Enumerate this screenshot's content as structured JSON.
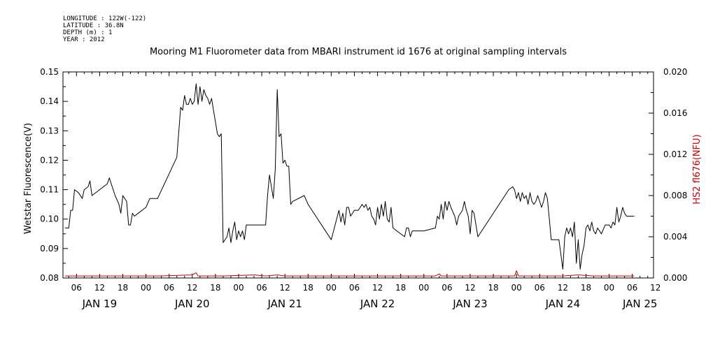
{
  "meta": {
    "longitude": "LONGITUDE : 122W(-122)",
    "latitude": "LATITUDE : 36.8N",
    "depth": "DEPTH (m) : 1",
    "year": "YEAR : 2012"
  },
  "chart_data": {
    "type": "line",
    "title": "Mooring M1 Fluorometer data from MBARI instrument id 1676 at original sampling intervals",
    "ylabel_left": "Wetstar Fluorescence(V)",
    "ylabel_right": "HS2 fl676(NFU)",
    "ylim_left": [
      0.08,
      0.15
    ],
    "ylim_right": [
      0.0,
      0.02
    ],
    "yticks_left": [
      "0.08",
      "0.09",
      "0.10",
      "0.11",
      "0.12",
      "0.13",
      "0.14",
      "0.15"
    ],
    "yticks_right": [
      "0.000",
      "0.004",
      "0.008",
      "0.012",
      "0.016",
      "0.020"
    ],
    "xlim_hours": [
      2.5,
      155.5
    ],
    "x_hour_labels": [
      {
        "h": 6,
        "label": "06"
      },
      {
        "h": 12,
        "label": "12"
      },
      {
        "h": 18,
        "label": "18"
      },
      {
        "h": 24,
        "label": "00"
      },
      {
        "h": 30,
        "label": "06"
      },
      {
        "h": 36,
        "label": "12"
      },
      {
        "h": 42,
        "label": "18"
      },
      {
        "h": 48,
        "label": "00"
      },
      {
        "h": 54,
        "label": "06"
      },
      {
        "h": 60,
        "label": "12"
      },
      {
        "h": 66,
        "label": "18"
      },
      {
        "h": 72,
        "label": "00"
      },
      {
        "h": 78,
        "label": "06"
      },
      {
        "h": 84,
        "label": "12"
      },
      {
        "h": 90,
        "label": "18"
      },
      {
        "h": 96,
        "label": "00"
      },
      {
        "h": 102,
        "label": "06"
      },
      {
        "h": 108,
        "label": "12"
      },
      {
        "h": 114,
        "label": "18"
      },
      {
        "h": 120,
        "label": "00"
      },
      {
        "h": 126,
        "label": "06"
      },
      {
        "h": 132,
        "label": "12"
      },
      {
        "h": 138,
        "label": "18"
      },
      {
        "h": 144,
        "label": "00"
      },
      {
        "h": 150,
        "label": "06"
      },
      {
        "h": 156,
        "label": "12"
      }
    ],
    "x_day_labels": [
      {
        "h": 12,
        "label": "JAN 19"
      },
      {
        "h": 36,
        "label": "JAN 20"
      },
      {
        "h": 60,
        "label": "JAN 21"
      },
      {
        "h": 84,
        "label": "JAN 22"
      },
      {
        "h": 108,
        "label": "JAN 23"
      },
      {
        "h": 132,
        "label": "JAN 24"
      },
      {
        "h": 152,
        "label": "JAN 25"
      }
    ],
    "series": [
      {
        "color": "#000000",
        "axis": "left",
        "points": [
          [
            3,
            0.097
          ],
          [
            4,
            0.097
          ],
          [
            4.5,
            0.103
          ],
          [
            5,
            0.103
          ],
          [
            5.5,
            0.11
          ],
          [
            6.5,
            0.109
          ],
          [
            7.5,
            0.107
          ],
          [
            8,
            0.11
          ],
          [
            9,
            0.111
          ],
          [
            9.5,
            0.113
          ],
          [
            10,
            0.108
          ],
          [
            12,
            0.11
          ],
          [
            14,
            0.112
          ],
          [
            14.5,
            0.114
          ],
          [
            16,
            0.108
          ],
          [
            17,
            0.105
          ],
          [
            17.5,
            0.102
          ],
          [
            18,
            0.108
          ],
          [
            19,
            0.106
          ],
          [
            19.5,
            0.098
          ],
          [
            20,
            0.098
          ],
          [
            20.5,
            0.102
          ],
          [
            21,
            0.101
          ],
          [
            22,
            0.102
          ],
          [
            24,
            0.104
          ],
          [
            25,
            0.107
          ],
          [
            27,
            0.107
          ],
          [
            32,
            0.121
          ],
          [
            33,
            0.138
          ],
          [
            33.5,
            0.137
          ],
          [
            34,
            0.142
          ],
          [
            34.5,
            0.139
          ],
          [
            35,
            0.139
          ],
          [
            35.5,
            0.141
          ],
          [
            36,
            0.139
          ],
          [
            36.5,
            0.14
          ],
          [
            37,
            0.146
          ],
          [
            37.5,
            0.139
          ],
          [
            38,
            0.145
          ],
          [
            38.5,
            0.14
          ],
          [
            39,
            0.144
          ],
          [
            39.5,
            0.142
          ],
          [
            40,
            0.141
          ],
          [
            40.5,
            0.139
          ],
          [
            41,
            0.141
          ],
          [
            41.5,
            0.137
          ],
          [
            42,
            0.133
          ],
          [
            42.5,
            0.129
          ],
          [
            43,
            0.128
          ],
          [
            43.5,
            0.129
          ],
          [
            44,
            0.092
          ],
          [
            45,
            0.094
          ],
          [
            45.5,
            0.097
          ],
          [
            46,
            0.092
          ],
          [
            46.5,
            0.096
          ],
          [
            47,
            0.099
          ],
          [
            47.5,
            0.093
          ],
          [
            48,
            0.096
          ],
          [
            48.5,
            0.094
          ],
          [
            49,
            0.096
          ],
          [
            49.5,
            0.093
          ],
          [
            50,
            0.098
          ],
          [
            55,
            0.098
          ],
          [
            55.5,
            0.108
          ],
          [
            56,
            0.115
          ],
          [
            56.5,
            0.111
          ],
          [
            57,
            0.107
          ],
          [
            57.5,
            0.117
          ],
          [
            58,
            0.144
          ],
          [
            58.5,
            0.128
          ],
          [
            59,
            0.129
          ],
          [
            59.5,
            0.119
          ],
          [
            60,
            0.12
          ],
          [
            60.5,
            0.118
          ],
          [
            61,
            0.118
          ],
          [
            61.5,
            0.105
          ],
          [
            62,
            0.106
          ],
          [
            65,
            0.108
          ],
          [
            66,
            0.105
          ],
          [
            72,
            0.093
          ],
          [
            74,
            0.103
          ],
          [
            74.5,
            0.099
          ],
          [
            75,
            0.102
          ],
          [
            75.5,
            0.098
          ],
          [
            76,
            0.104
          ],
          [
            76.5,
            0.104
          ],
          [
            77,
            0.101
          ],
          [
            78,
            0.103
          ],
          [
            79,
            0.103
          ],
          [
            80,
            0.105
          ],
          [
            80.5,
            0.104
          ],
          [
            81,
            0.105
          ],
          [
            81.5,
            0.103
          ],
          [
            82,
            0.104
          ],
          [
            82.5,
            0.101
          ],
          [
            83,
            0.1
          ],
          [
            83.5,
            0.098
          ],
          [
            84,
            0.104
          ],
          [
            84.5,
            0.1
          ],
          [
            85,
            0.105
          ],
          [
            85.5,
            0.101
          ],
          [
            86,
            0.106
          ],
          [
            86.5,
            0.1
          ],
          [
            87,
            0.099
          ],
          [
            87.5,
            0.104
          ],
          [
            88,
            0.097
          ],
          [
            91,
            0.094
          ],
          [
            91.5,
            0.097
          ],
          [
            92,
            0.097
          ],
          [
            92.5,
            0.094
          ],
          [
            93,
            0.096
          ],
          [
            94,
            0.096
          ],
          [
            96,
            0.096
          ],
          [
            99,
            0.097
          ],
          [
            99.5,
            0.101
          ],
          [
            100,
            0.1
          ],
          [
            100.5,
            0.105
          ],
          [
            101,
            0.1
          ],
          [
            101.5,
            0.106
          ],
          [
            102,
            0.103
          ],
          [
            102.5,
            0.106
          ],
          [
            103,
            0.104
          ],
          [
            104,
            0.101
          ],
          [
            104.5,
            0.098
          ],
          [
            105,
            0.101
          ],
          [
            106,
            0.103
          ],
          [
            106.5,
            0.106
          ],
          [
            107,
            0.103
          ],
          [
            107.5,
            0.101
          ],
          [
            108,
            0.095
          ],
          [
            108.5,
            0.103
          ],
          [
            109,
            0.102
          ],
          [
            110,
            0.094
          ],
          [
            118,
            0.11
          ],
          [
            119,
            0.111
          ],
          [
            119.5,
            0.11
          ],
          [
            120,
            0.107
          ],
          [
            120.5,
            0.109
          ],
          [
            121,
            0.106
          ],
          [
            121.5,
            0.109
          ],
          [
            122,
            0.107
          ],
          [
            122.5,
            0.108
          ],
          [
            123,
            0.105
          ],
          [
            123.5,
            0.109
          ],
          [
            124,
            0.106
          ],
          [
            124.5,
            0.105
          ],
          [
            125,
            0.106
          ],
          [
            125.5,
            0.108
          ],
          [
            126,
            0.106
          ],
          [
            126.5,
            0.104
          ],
          [
            127,
            0.106
          ],
          [
            127.5,
            0.109
          ],
          [
            128,
            0.107
          ],
          [
            128.5,
            0.1
          ],
          [
            129,
            0.093
          ],
          [
            131,
            0.093
          ],
          [
            131.5,
            0.088
          ],
          [
            132,
            0.083
          ],
          [
            132.5,
            0.094
          ],
          [
            133,
            0.097
          ],
          [
            133.5,
            0.095
          ],
          [
            134,
            0.097
          ],
          [
            134.5,
            0.094
          ],
          [
            135,
            0.099
          ],
          [
            135.5,
            0.085
          ],
          [
            136,
            0.093
          ],
          [
            136.5,
            0.083
          ],
          [
            137,
            0.088
          ],
          [
            137.5,
            0.091
          ],
          [
            138,
            0.097
          ],
          [
            138.5,
            0.098
          ],
          [
            139,
            0.096
          ],
          [
            139.5,
            0.099
          ],
          [
            140,
            0.096
          ],
          [
            140.5,
            0.095
          ],
          [
            141,
            0.097
          ],
          [
            141.5,
            0.096
          ],
          [
            142,
            0.095
          ],
          [
            143,
            0.098
          ],
          [
            144,
            0.098
          ],
          [
            144.5,
            0.097
          ],
          [
            145,
            0.099
          ],
          [
            145.5,
            0.098
          ],
          [
            146,
            0.104
          ],
          [
            146.5,
            0.099
          ],
          [
            147,
            0.101
          ],
          [
            147.5,
            0.104
          ],
          [
            148,
            0.102
          ],
          [
            148.5,
            0.101
          ],
          [
            149.5,
            0.101
          ],
          [
            150.5,
            0.101
          ]
        ]
      },
      {
        "color": "#cc0000",
        "axis": "right",
        "points": [
          [
            3,
            0.0002
          ],
          [
            20,
            0.0002
          ],
          [
            27,
            0.0002
          ],
          [
            36,
            0.0003
          ],
          [
            37,
            0.0005
          ],
          [
            37.5,
            0.0002
          ],
          [
            44,
            0.0002
          ],
          [
            52,
            0.0003
          ],
          [
            55,
            0.0002
          ],
          [
            58,
            0.0003
          ],
          [
            60,
            0.0002
          ],
          [
            80,
            0.0002
          ],
          [
            88,
            0.0002
          ],
          [
            99,
            0.0002
          ],
          [
            100,
            0.0004
          ],
          [
            100.5,
            0.0002
          ],
          [
            110,
            0.0002
          ],
          [
            118,
            0.0002
          ],
          [
            119.5,
            0.0002
          ],
          [
            120,
            0.0007
          ],
          [
            120.5,
            0.0002
          ],
          [
            124,
            0.0002
          ],
          [
            132,
            0.0002
          ],
          [
            136,
            0.0003
          ],
          [
            140,
            0.0002
          ],
          [
            150.5,
            0.0002
          ]
        ]
      }
    ]
  }
}
